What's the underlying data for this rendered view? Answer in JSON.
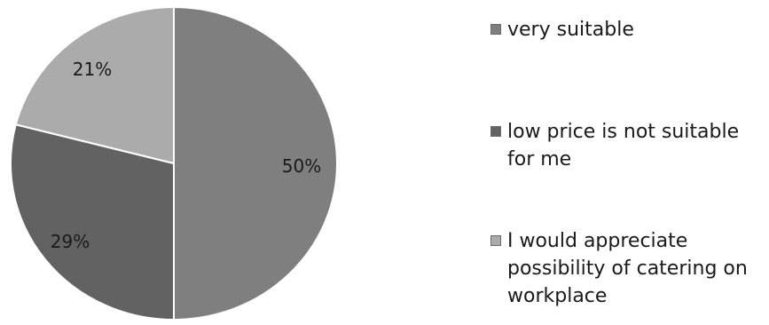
{
  "chart_data": {
    "type": "pie",
    "categories": [
      "very suitable",
      "low price is not suitable for me",
      "I would appreciate possibility of catering on workplace"
    ],
    "values": [
      50,
      29,
      21
    ],
    "value_labels": [
      "50%",
      "29%",
      "21%"
    ],
    "colors": [
      "#7f7f7f",
      "#626262",
      "#ababab"
    ],
    "legend_position": "right"
  }
}
